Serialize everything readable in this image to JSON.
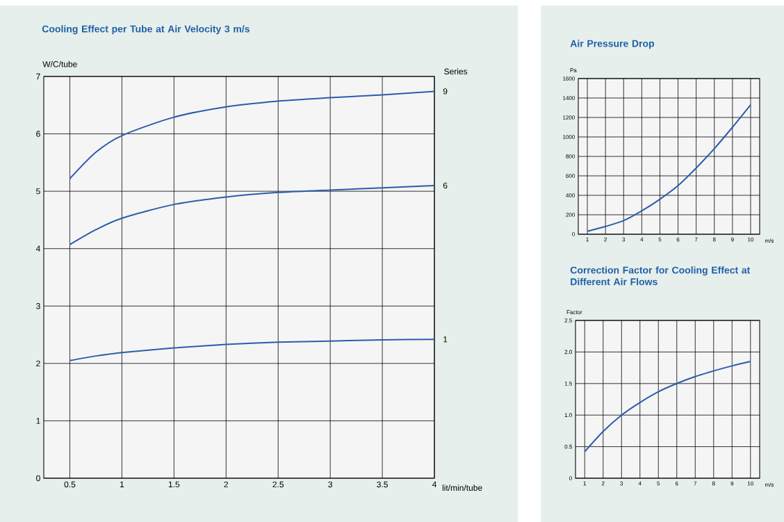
{
  "chart_data": [
    {
      "type": "line",
      "title": "Cooling Effect per Tube at Air Velocity 3 m/s",
      "xlabel": "lit/min/tube",
      "ylabel": "W/C/tube",
      "legend_title": "Series",
      "x": [
        0.5,
        0.75,
        1,
        1.5,
        2,
        2.5,
        3,
        3.5,
        4
      ],
      "series": [
        {
          "name": "9",
          "color": "#2a5caa",
          "values": [
            5.22,
            5.68,
            5.97,
            6.29,
            6.47,
            6.57,
            6.63,
            6.68,
            6.74
          ]
        },
        {
          "name": "6",
          "color": "#2a5caa",
          "values": [
            4.07,
            4.33,
            4.53,
            4.77,
            4.9,
            4.98,
            5.02,
            5.06,
            5.1
          ]
        },
        {
          "name": "1",
          "color": "#2a5caa",
          "values": [
            2.05,
            2.13,
            2.19,
            2.27,
            2.33,
            2.37,
            2.39,
            2.41,
            2.42
          ]
        }
      ],
      "xlim": [
        0.25,
        4
      ],
      "xticks": [
        0.5,
        1,
        1.5,
        2,
        2.5,
        3,
        3.5,
        4
      ],
      "ylim": [
        0,
        7
      ],
      "yticks": [
        0,
        1,
        2,
        3,
        4,
        5,
        6,
        7
      ],
      "grid": true
    },
    {
      "type": "line",
      "title": "Air Pressure Drop",
      "xlabel": "m/s",
      "ylabel": "Pa",
      "x": [
        1,
        2,
        3,
        4,
        5,
        6,
        7,
        8,
        9,
        10
      ],
      "series": [
        {
          "color": "#2a5caa",
          "values": [
            30,
            80,
            140,
            240,
            360,
            500,
            680,
            880,
            1100,
            1330
          ]
        }
      ],
      "xlim": [
        0.5,
        10.5
      ],
      "xticks": [
        1,
        2,
        3,
        4,
        5,
        6,
        7,
        8,
        9,
        10
      ],
      "ylim": [
        0,
        1600
      ],
      "yticks": [
        0,
        200,
        400,
        600,
        800,
        1000,
        1200,
        1400,
        1600
      ],
      "grid": true
    },
    {
      "type": "line",
      "title": "Correction Factor for Cooling Effect at Different Air Flows",
      "xlabel": "m/s",
      "ylabel": "Factor",
      "x": [
        1,
        2,
        3,
        4,
        5,
        6,
        7,
        8,
        9,
        10
      ],
      "series": [
        {
          "color": "#2a5caa",
          "values": [
            0.42,
            0.74,
            1.0,
            1.2,
            1.37,
            1.5,
            1.61,
            1.7,
            1.78,
            1.85
          ]
        }
      ],
      "xlim": [
        0.5,
        10.5
      ],
      "xticks": [
        1,
        2,
        3,
        4,
        5,
        6,
        7,
        8,
        9,
        10
      ],
      "ylim": [
        0,
        2.5
      ],
      "yticks": [
        0,
        0.5,
        {
          "value": 1,
          "label": "1.0"
        },
        1.5,
        {
          "value": 2,
          "label": "2.0"
        },
        2.5
      ],
      "grid": true
    }
  ]
}
